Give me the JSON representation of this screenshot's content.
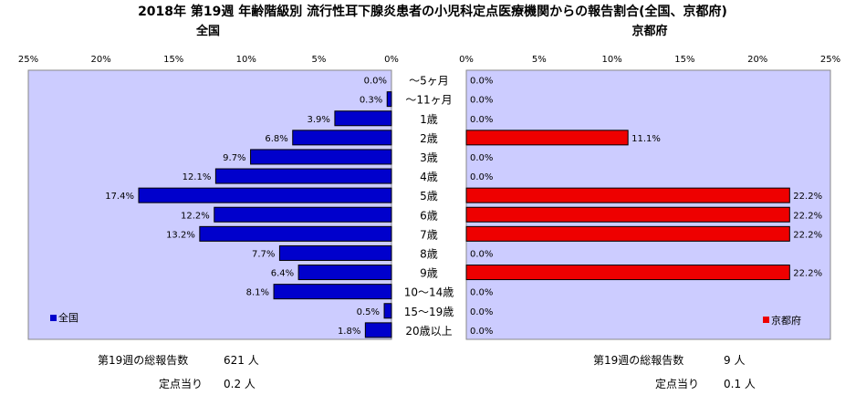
{
  "title": "2018年 第19週 年齢階級別 流行性耳下腺炎患者の小児科定点医療機関からの報告割合(全国、京都府)",
  "colors": {
    "plot_bg": "#ccccff",
    "national_bar": "#0000cc",
    "kyoto_bar": "#ee0000",
    "bar_outline": "#000000"
  },
  "chart_data": [
    {
      "type": "bar",
      "orientation": "horizontal",
      "direction": "right-to-left",
      "title": "全国",
      "legend": "全国",
      "legend_position": "bottom-left",
      "xlim": [
        0,
        25
      ],
      "ticks": [
        "25%",
        "20%",
        "15%",
        "10%",
        "5%",
        "0%"
      ],
      "tick_values": [
        25,
        20,
        15,
        10,
        5,
        0
      ],
      "categories": [
        "～5ヶ月",
        "～11ヶ月",
        "1歳",
        "2歳",
        "3歳",
        "4歳",
        "5歳",
        "6歳",
        "7歳",
        "8歳",
        "9歳",
        "10～14歳",
        "15～19歳",
        "20歳以上"
      ],
      "values": [
        0.0,
        0.3,
        3.9,
        6.8,
        9.7,
        12.1,
        17.4,
        12.2,
        13.2,
        7.7,
        6.4,
        8.1,
        0.5,
        1.8
      ],
      "labels": [
        "0.0%",
        "0.3%",
        "3.9%",
        "6.8%",
        "9.7%",
        "12.1%",
        "17.4%",
        "12.2%",
        "13.2%",
        "7.7%",
        "6.4%",
        "8.1%",
        "0.5%",
        "1.8%"
      ]
    },
    {
      "type": "bar",
      "orientation": "horizontal",
      "direction": "left-to-right",
      "title": "京都府",
      "legend": "京都府",
      "legend_position": "bottom-right",
      "xlim": [
        0,
        25
      ],
      "ticks": [
        "0%",
        "5%",
        "10%",
        "15%",
        "20%",
        "25%"
      ],
      "tick_values": [
        0,
        5,
        10,
        15,
        20,
        25
      ],
      "categories": [
        "～5ヶ月",
        "～11ヶ月",
        "1歳",
        "2歳",
        "3歳",
        "4歳",
        "5歳",
        "6歳",
        "7歳",
        "8歳",
        "9歳",
        "10～14歳",
        "15～19歳",
        "20歳以上"
      ],
      "values": [
        0.0,
        0.0,
        0.0,
        11.1,
        0.0,
        0.0,
        22.2,
        22.2,
        22.2,
        0.0,
        22.2,
        0.0,
        0.0,
        0.0
      ],
      "labels": [
        "0.0%",
        "0.0%",
        "0.0%",
        "11.1%",
        "0.0%",
        "0.0%",
        "22.2%",
        "22.2%",
        "22.2%",
        "0.0%",
        "22.2%",
        "0.0%",
        "0.0%",
        "0.0%"
      ]
    }
  ],
  "stats": {
    "national": {
      "total_label": "第19週の総報告数",
      "total_value": "621 人",
      "per_site_label": "定点当り",
      "per_site_value": "0.2 人"
    },
    "kyoto": {
      "total_label": "第19週の総報告数",
      "total_value": "9 人",
      "per_site_label": "定点当り",
      "per_site_value": "0.1 人"
    }
  }
}
